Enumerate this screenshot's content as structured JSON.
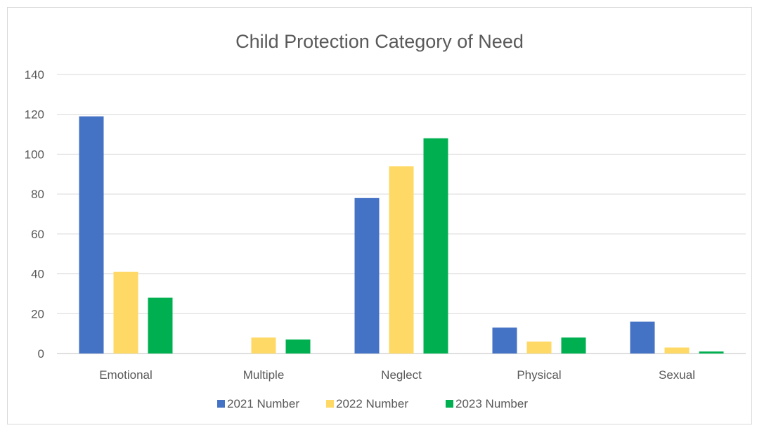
{
  "chart_data": {
    "type": "bar",
    "title": "Child Protection Category of Need",
    "categories": [
      "Emotional",
      "Multiple",
      "Neglect",
      "Physical",
      "Sexual"
    ],
    "series": [
      {
        "name": "2021 Number",
        "color": "#4472C4",
        "values": [
          119,
          0,
          78,
          13,
          16
        ]
      },
      {
        "name": "2022 Number",
        "color": "#FFD966",
        "values": [
          41,
          8,
          94,
          6,
          3
        ]
      },
      {
        "name": "2023 Number",
        "color": "#00B050",
        "values": [
          28,
          7,
          108,
          8,
          1
        ]
      }
    ],
    "ylim": [
      0,
      140
    ],
    "yticks": [
      0,
      20,
      40,
      60,
      80,
      100,
      120,
      140
    ],
    "grid": true,
    "legend_position": "bottom"
  }
}
